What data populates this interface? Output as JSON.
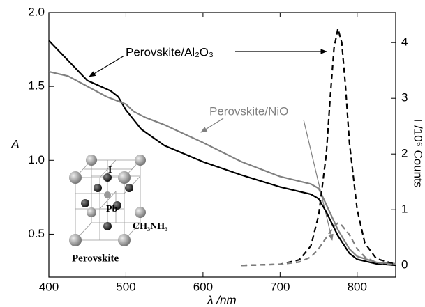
{
  "chart_data": {
    "type": "line",
    "xlabel": "λ /nm",
    "ylabel": "A",
    "y2label": "I /10⁶ Counts",
    "xlim": [
      400,
      850
    ],
    "xticks": [
      400,
      500,
      600,
      700,
      800
    ],
    "ylim": [
      0.21,
      2.0
    ],
    "yticks": [
      0.5,
      {
        "value": 1,
        "label": "1.0"
      },
      1.5,
      {
        "value": 2,
        "label": "2.0"
      }
    ],
    "y2lim": [
      -0.21,
      4.54
    ],
    "y2ticks": [
      0,
      1,
      2,
      3,
      4
    ],
    "annotations": [
      "Perovskite/Al₂O₃",
      "Perovskite/NiO"
    ],
    "inset_labels": [
      "I",
      "Pb",
      "CH₃NH₃",
      "Perovskite"
    ],
    "series": [
      {
        "color": "#000000",
        "linestyle": "solid",
        "axis": "y",
        "x": [
          400,
          450,
          480,
          490,
          500,
          520,
          550,
          600,
          650,
          700,
          740,
          750,
          760,
          775,
          790,
          800,
          825,
          850
        ],
        "values": [
          1.81,
          1.54,
          1.47,
          1.43,
          1.34,
          1.21,
          1.1,
          0.99,
          0.9,
          0.82,
          0.77,
          0.74,
          0.65,
          0.49,
          0.37,
          0.33,
          0.3,
          0.29
        ]
      },
      {
        "color": "#808080",
        "linestyle": "solid",
        "axis": "y",
        "x": [
          400,
          425,
          450,
          475,
          500,
          510,
          525,
          550,
          575,
          600,
          650,
          700,
          740,
          750,
          760,
          775,
          790,
          800,
          825,
          850
        ],
        "values": [
          1.6,
          1.57,
          1.5,
          1.43,
          1.38,
          1.33,
          1.29,
          1.24,
          1.18,
          1.12,
          0.99,
          0.89,
          0.84,
          0.81,
          0.7,
          0.53,
          0.4,
          0.35,
          0.31,
          0.3
        ]
      },
      {
        "color": "#000000",
        "linestyle": "dashed",
        "axis": "y2",
        "x": [
          650,
          700,
          725,
          740,
          750,
          760,
          765,
          770,
          775,
          780,
          785,
          790,
          800,
          810,
          825,
          850
        ],
        "values": [
          0,
          0.02,
          0.1,
          0.35,
          0.9,
          2.0,
          3.0,
          3.9,
          4.25,
          4.0,
          3.2,
          2.2,
          1.0,
          0.4,
          0.12,
          0.02
        ]
      },
      {
        "color": "#808080",
        "linestyle": "dashed",
        "axis": "y2",
        "x": [
          650,
          700,
          725,
          740,
          750,
          760,
          770,
          775,
          780,
          790,
          800,
          810,
          825,
          850
        ],
        "values": [
          0,
          0.02,
          0.06,
          0.15,
          0.3,
          0.5,
          0.7,
          0.76,
          0.72,
          0.55,
          0.3,
          0.15,
          0.05,
          0.01
        ]
      }
    ]
  }
}
